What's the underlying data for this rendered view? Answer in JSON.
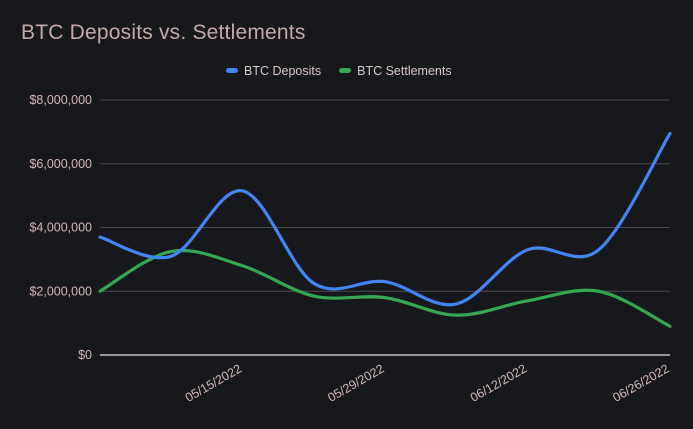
{
  "chart_data": {
    "type": "line",
    "title": "BTC Deposits vs. Settlements",
    "xlabel": "",
    "ylabel": "",
    "ylim": [
      0,
      8000000
    ],
    "yticks": [
      0,
      2000000,
      4000000,
      6000000,
      8000000
    ],
    "ytick_labels": [
      "$0",
      "$2,000,000",
      "$4,000,000",
      "$6,000,000",
      "$8,000,000"
    ],
    "x": [
      "05/01/2022",
      "05/08/2022",
      "05/15/2022",
      "05/22/2022",
      "05/29/2022",
      "06/05/2022",
      "06/12/2022",
      "06/19/2022",
      "06/26/2022"
    ],
    "xtick_labels": [
      "05/15/2022",
      "05/29/2022",
      "06/12/2022",
      "06/26/2022"
    ],
    "series": [
      {
        "name": "BTC Deposits",
        "color": "#4285f4",
        "values": [
          3700000,
          3100000,
          5150000,
          2250000,
          2300000,
          1600000,
          3300000,
          3300000,
          6950000
        ]
      },
      {
        "name": "BTC Settlements",
        "color": "#34a853",
        "values": [
          2000000,
          3250000,
          2800000,
          1850000,
          1800000,
          1250000,
          1700000,
          2000000,
          900000
        ]
      }
    ],
    "legend_position": "top-center",
    "grid": true
  }
}
